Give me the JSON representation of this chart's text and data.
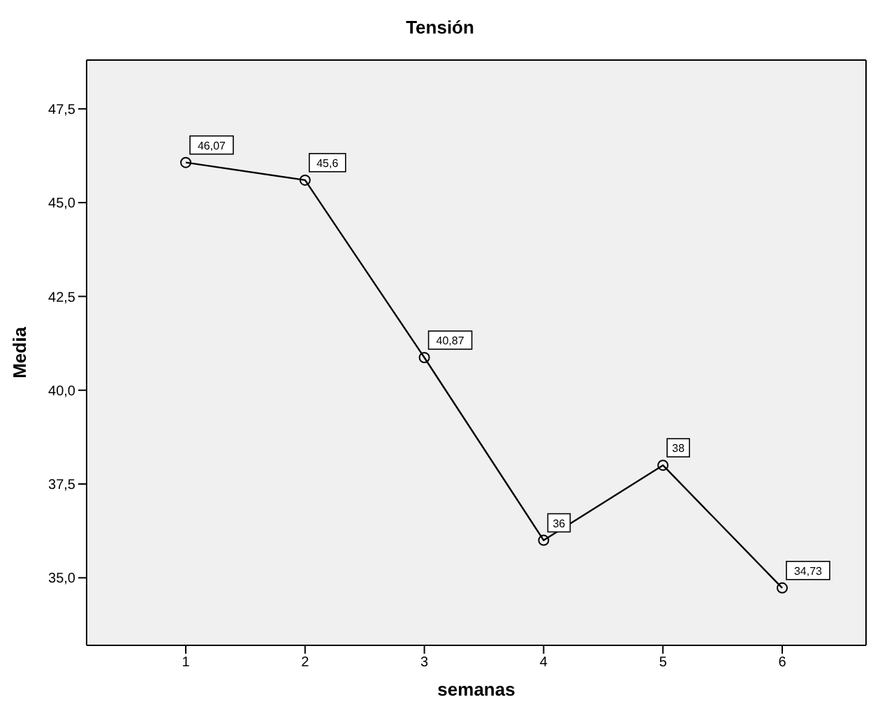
{
  "chart_data": {
    "type": "line",
    "title": "Tensión",
    "xlabel": "semanas",
    "ylabel": "Media",
    "categories": [
      "1",
      "2",
      "3",
      "4",
      "5",
      "6"
    ],
    "series": [
      {
        "color": "#000000",
        "values": [
          46.07,
          45.6,
          40.87,
          36,
          38,
          34.73
        ],
        "value_labels": [
          "46,07",
          "45,6",
          "40,87",
          "36",
          "38",
          "34,73"
        ]
      }
    ],
    "ylim": [
      33.2,
      48.8
    ],
    "yticks": [
      {
        "value": 35,
        "label": "35,0"
      },
      {
        "value": 37.5,
        "label": "37,5"
      },
      {
        "value": 40,
        "label": "40,0"
      },
      {
        "value": 42.5,
        "label": "42,5"
      },
      {
        "value": 45,
        "label": "45,0"
      },
      {
        "value": 47.5,
        "label": "47,5"
      }
    ],
    "grid": false,
    "legend": false,
    "marker": "circle",
    "line_style": "solid"
  }
}
